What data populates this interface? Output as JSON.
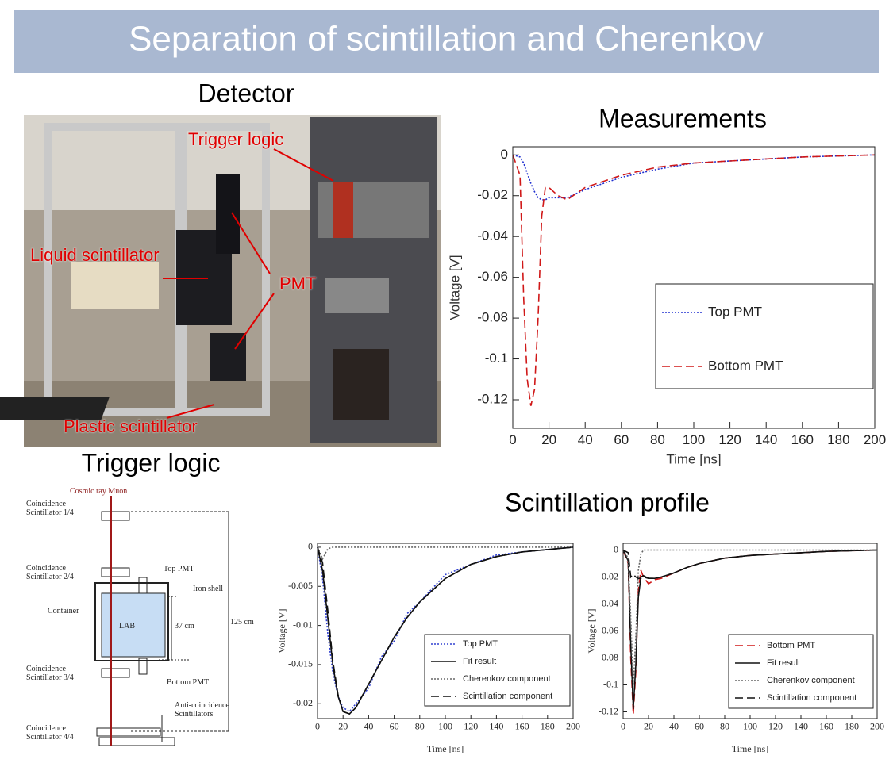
{
  "header": {
    "title": "Separation of scintillation and Cherenkov"
  },
  "sections": {
    "detector": "Detector",
    "measurements": "Measurements",
    "trigger_logic": "Trigger logic",
    "scintillation_profile": "Scintillation profile"
  },
  "photo": {
    "labels": [
      "Trigger logic",
      "Liquid scintillator",
      "PMT",
      "Plastic scintillator"
    ]
  },
  "diagram": {
    "labels": [
      "Cosmic ray Muon",
      "Coincidence\nScintillator 1/4",
      "Coincidence\nScintillator 2/4",
      "Top PMT",
      "Iron shell",
      "Container",
      "LAB",
      "37 cm",
      "125 cm",
      "Coincidence\nScintillator 3/4",
      "Bottom PMT",
      "Anti-coincidence\nScintillators",
      "Coincidence\nScintillator 4/4"
    ]
  },
  "chart_data": [
    {
      "type": "line",
      "x_label": "Time [ns]",
      "y_label": "Voltage [V]",
      "legend": "lower right",
      "x": [
        0,
        4,
        6,
        8,
        10,
        12,
        14,
        16,
        18,
        20,
        25,
        30,
        40,
        50,
        60,
        80,
        100,
        120,
        140,
        160,
        200
      ],
      "xlim": [
        0,
        200
      ],
      "ylim": [
        -0.134,
        0.004
      ],
      "xticks": [
        0,
        20,
        40,
        60,
        80,
        100,
        120,
        140,
        160,
        180,
        200
      ],
      "yticks": [
        0,
        -0.02,
        -0.04,
        -0.06,
        -0.08,
        -0.1,
        -0.12
      ],
      "series": [
        {
          "name": "Top PMT",
          "color": "#2030d0",
          "style": "dotted",
          "values": [
            0,
            -0.001,
            -0.004,
            -0.009,
            -0.014,
            -0.018,
            -0.021,
            -0.022,
            -0.022,
            -0.021,
            -0.021,
            -0.021,
            -0.017,
            -0.014,
            -0.011,
            -0.007,
            -0.004,
            -0.003,
            -0.002,
            -0.001,
            0
          ]
        },
        {
          "name": "Bottom PMT",
          "color": "#d01818",
          "style": "dashed",
          "values": [
            0,
            -0.01,
            -0.07,
            -0.11,
            -0.123,
            -0.115,
            -0.08,
            -0.03,
            -0.016,
            -0.016,
            -0.02,
            -0.022,
            -0.016,
            -0.013,
            -0.01,
            -0.006,
            -0.004,
            -0.003,
            -0.002,
            -0.001,
            0
          ]
        }
      ]
    },
    {
      "type": "line",
      "x_label": "Time [ns]",
      "y_label": "Voltage [V]",
      "legend": "lower right",
      "x": [
        0,
        4,
        8,
        12,
        16,
        20,
        25,
        30,
        40,
        50,
        60,
        70,
        80,
        100,
        120,
        140,
        160,
        200
      ],
      "xlim": [
        0,
        200
      ],
      "ylim": [
        -0.0219,
        0.0005
      ],
      "xticks": [
        0,
        20,
        40,
        60,
        80,
        100,
        120,
        140,
        160,
        180,
        200
      ],
      "yticks": [
        0,
        -0.005,
        -0.01,
        -0.015,
        -0.02
      ],
      "series": [
        {
          "name": "Top PMT",
          "color": "#3040d0",
          "style": "dotted",
          "values": [
            0,
            -0.004,
            -0.011,
            -0.016,
            -0.019,
            -0.0205,
            -0.021,
            -0.02,
            -0.018,
            -0.014,
            -0.012,
            -0.0085,
            -0.007,
            -0.0035,
            -0.0022,
            -0.001,
            -0.0006,
            0
          ]
        },
        {
          "name": "Fit result",
          "color": "#111111",
          "style": "solid",
          "values": [
            0,
            -0.003,
            -0.009,
            -0.015,
            -0.019,
            -0.021,
            -0.0213,
            -0.0205,
            -0.0175,
            -0.0145,
            -0.0115,
            -0.009,
            -0.007,
            -0.004,
            -0.0022,
            -0.0012,
            -0.0006,
            0
          ]
        },
        {
          "name": "Cherenkov component",
          "color": "#666666",
          "style": "dotted",
          "values": [
            0,
            -0.0015,
            -0.0002,
            0,
            0,
            0,
            0,
            0,
            0,
            0,
            0,
            0,
            0,
            0,
            0,
            0,
            0,
            0
          ]
        },
        {
          "name": "Scintillation component",
          "color": "#111111",
          "style": "dashed",
          "values": [
            0,
            -0.002,
            -0.008,
            -0.0145,
            -0.0188,
            -0.021,
            -0.0213,
            -0.0205,
            -0.0175,
            -0.0145,
            -0.0115,
            -0.009,
            -0.007,
            -0.004,
            -0.0022,
            -0.0012,
            -0.0006,
            0
          ]
        }
      ]
    },
    {
      "type": "line",
      "x_label": "Time [ns]",
      "y_label": "Voltage [V]",
      "legend": "lower right",
      "x": [
        0,
        4,
        6,
        8,
        10,
        12,
        14,
        16,
        20,
        25,
        30,
        40,
        50,
        60,
        80,
        100,
        120,
        140,
        160,
        200
      ],
      "xlim": [
        0,
        200
      ],
      "ylim": [
        -0.125,
        0.005
      ],
      "xticks": [
        0,
        20,
        40,
        60,
        80,
        100,
        120,
        140,
        160,
        180,
        200
      ],
      "yticks": [
        0,
        -0.02,
        -0.04,
        -0.06,
        -0.08,
        -0.1,
        -0.12
      ],
      "series": [
        {
          "name": "Bottom PMT",
          "color": "#d01818",
          "style": "dashed",
          "values": [
            0,
            -0.01,
            -0.08,
            -0.122,
            -0.09,
            -0.03,
            -0.015,
            -0.02,
            -0.025,
            -0.022,
            -0.021,
            -0.017,
            -0.013,
            -0.01,
            -0.006,
            -0.004,
            -0.003,
            -0.002,
            -0.001,
            0
          ]
        },
        {
          "name": "Fit result",
          "color": "#111111",
          "style": "solid",
          "values": [
            0,
            -0.008,
            -0.07,
            -0.118,
            -0.085,
            -0.035,
            -0.02,
            -0.019,
            -0.021,
            -0.021,
            -0.02,
            -0.017,
            -0.013,
            -0.01,
            -0.006,
            -0.004,
            -0.003,
            -0.002,
            -0.001,
            0
          ]
        },
        {
          "name": "Cherenkov component",
          "color": "#666666",
          "style": "dotted",
          "values": [
            0,
            -0.006,
            -0.05,
            -0.1,
            -0.065,
            -0.015,
            -0.003,
            0,
            0,
            0,
            0,
            0,
            0,
            0,
            0,
            0,
            0,
            0,
            0,
            0
          ]
        },
        {
          "name": "Scintillation component",
          "color": "#111111",
          "style": "dashed",
          "values": [
            0,
            -0.002,
            -0.02,
            -0.018,
            -0.02,
            -0.021,
            -0.021,
            -0.02,
            -0.021,
            -0.021,
            -0.02,
            -0.017,
            -0.013,
            -0.01,
            -0.006,
            -0.004,
            -0.003,
            -0.002,
            -0.001,
            0
          ]
        }
      ]
    }
  ]
}
